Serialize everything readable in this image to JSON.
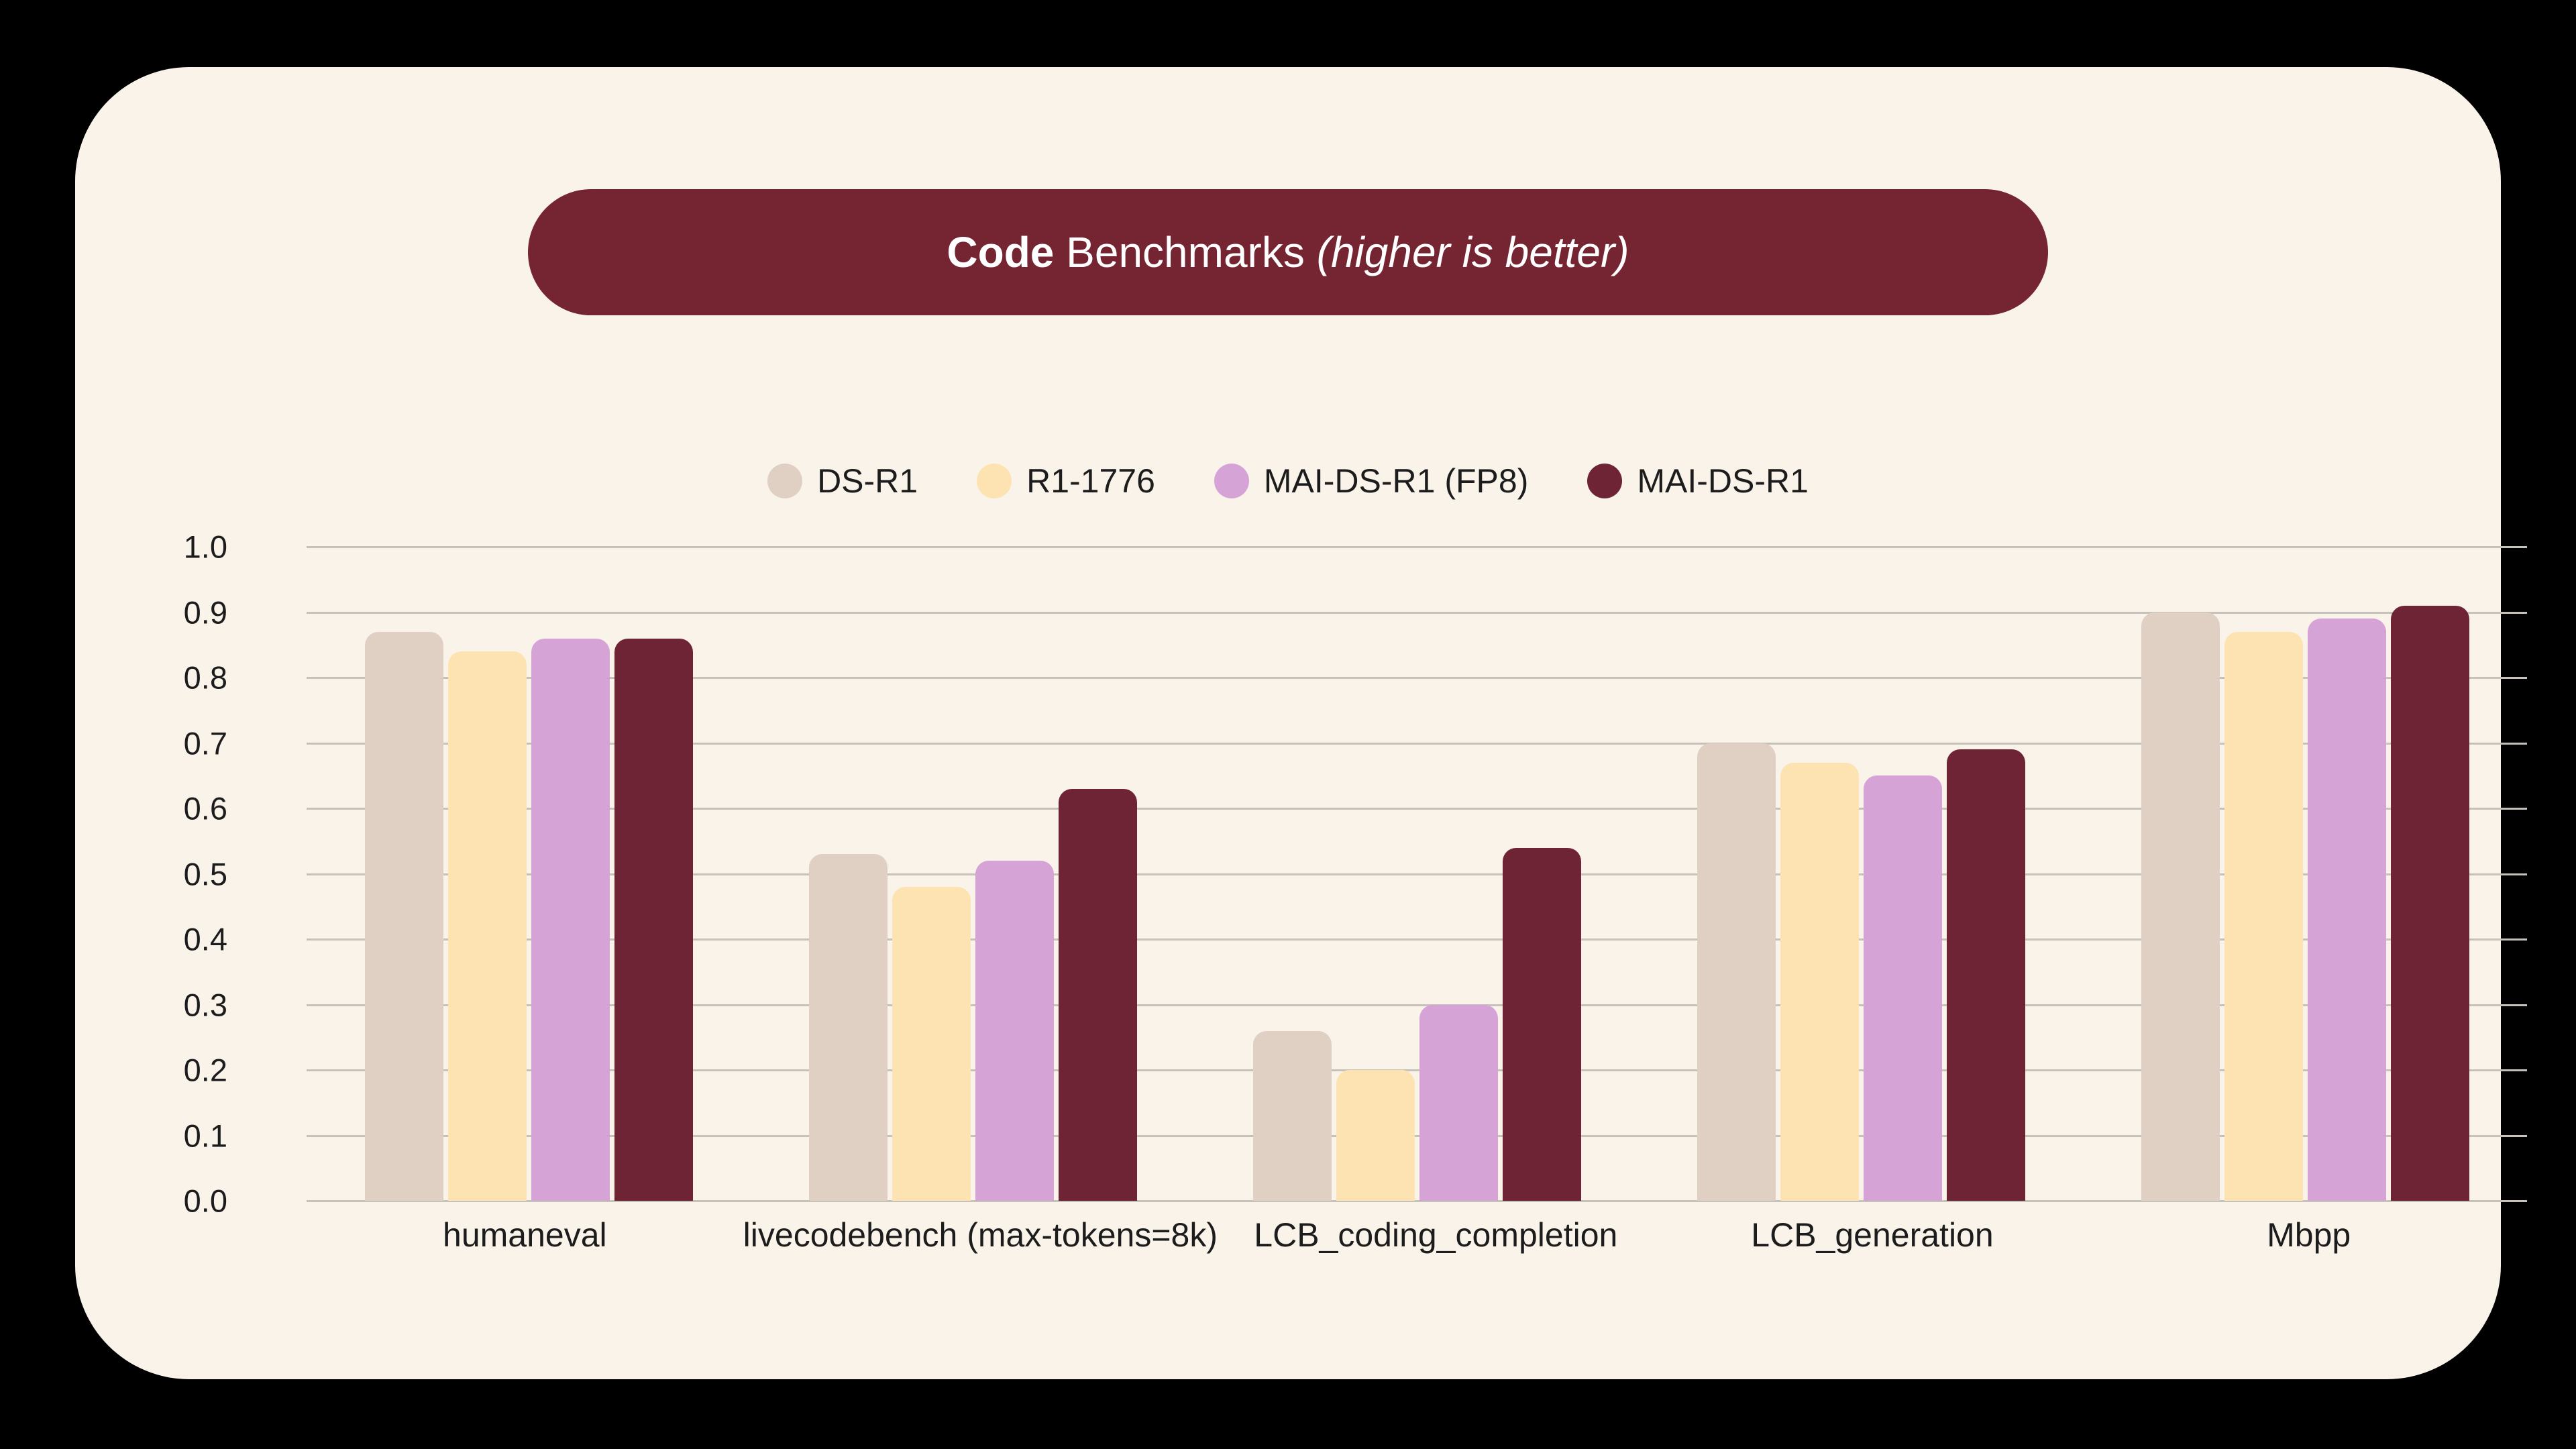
{
  "title": {
    "bold": "Code",
    "regular": " Benchmarks ",
    "italic": "(higher is better)"
  },
  "colors": {
    "page_background": "#000000",
    "card_background": "#faf3ea",
    "banner_background": "#752531",
    "title_text": "#ffffff",
    "gridline": "#c6c1b9",
    "axis_text": "#1c1c1c"
  },
  "chart_data": {
    "type": "bar",
    "title": "Code Benchmarks (higher is better)",
    "categories": [
      "humaneval",
      "livecodebench (max-tokens=8k)",
      "LCB_coding_completion",
      "LCB_generation",
      "Mbpp"
    ],
    "series": [
      {
        "name": "DS-R1",
        "color": "#dfd0c3",
        "values": [
          0.87,
          0.53,
          0.26,
          0.7,
          0.9
        ]
      },
      {
        "name": "R1-1776",
        "color": "#fde3b2",
        "values": [
          0.84,
          0.48,
          0.2,
          0.67,
          0.87
        ]
      },
      {
        "name": "MAI-DS-R1 (FP8)",
        "color": "#d6a3d7",
        "values": [
          0.86,
          0.52,
          0.3,
          0.65,
          0.89
        ]
      },
      {
        "name": "MAI-DS-R1",
        "color": "#6e2435",
        "values": [
          0.86,
          0.63,
          0.54,
          0.69,
          0.91
        ]
      }
    ],
    "xlabel": "",
    "ylabel": "",
    "ylim": [
      0.0,
      1.0
    ],
    "ytick_labels": [
      "1.0",
      "0.9",
      "0.8",
      "0.7",
      "0.6",
      "0.5",
      "0.4",
      "0.3",
      "0.2",
      "0.1",
      "0.0"
    ],
    "grid": "horizontal",
    "legend_position": "top-center"
  }
}
